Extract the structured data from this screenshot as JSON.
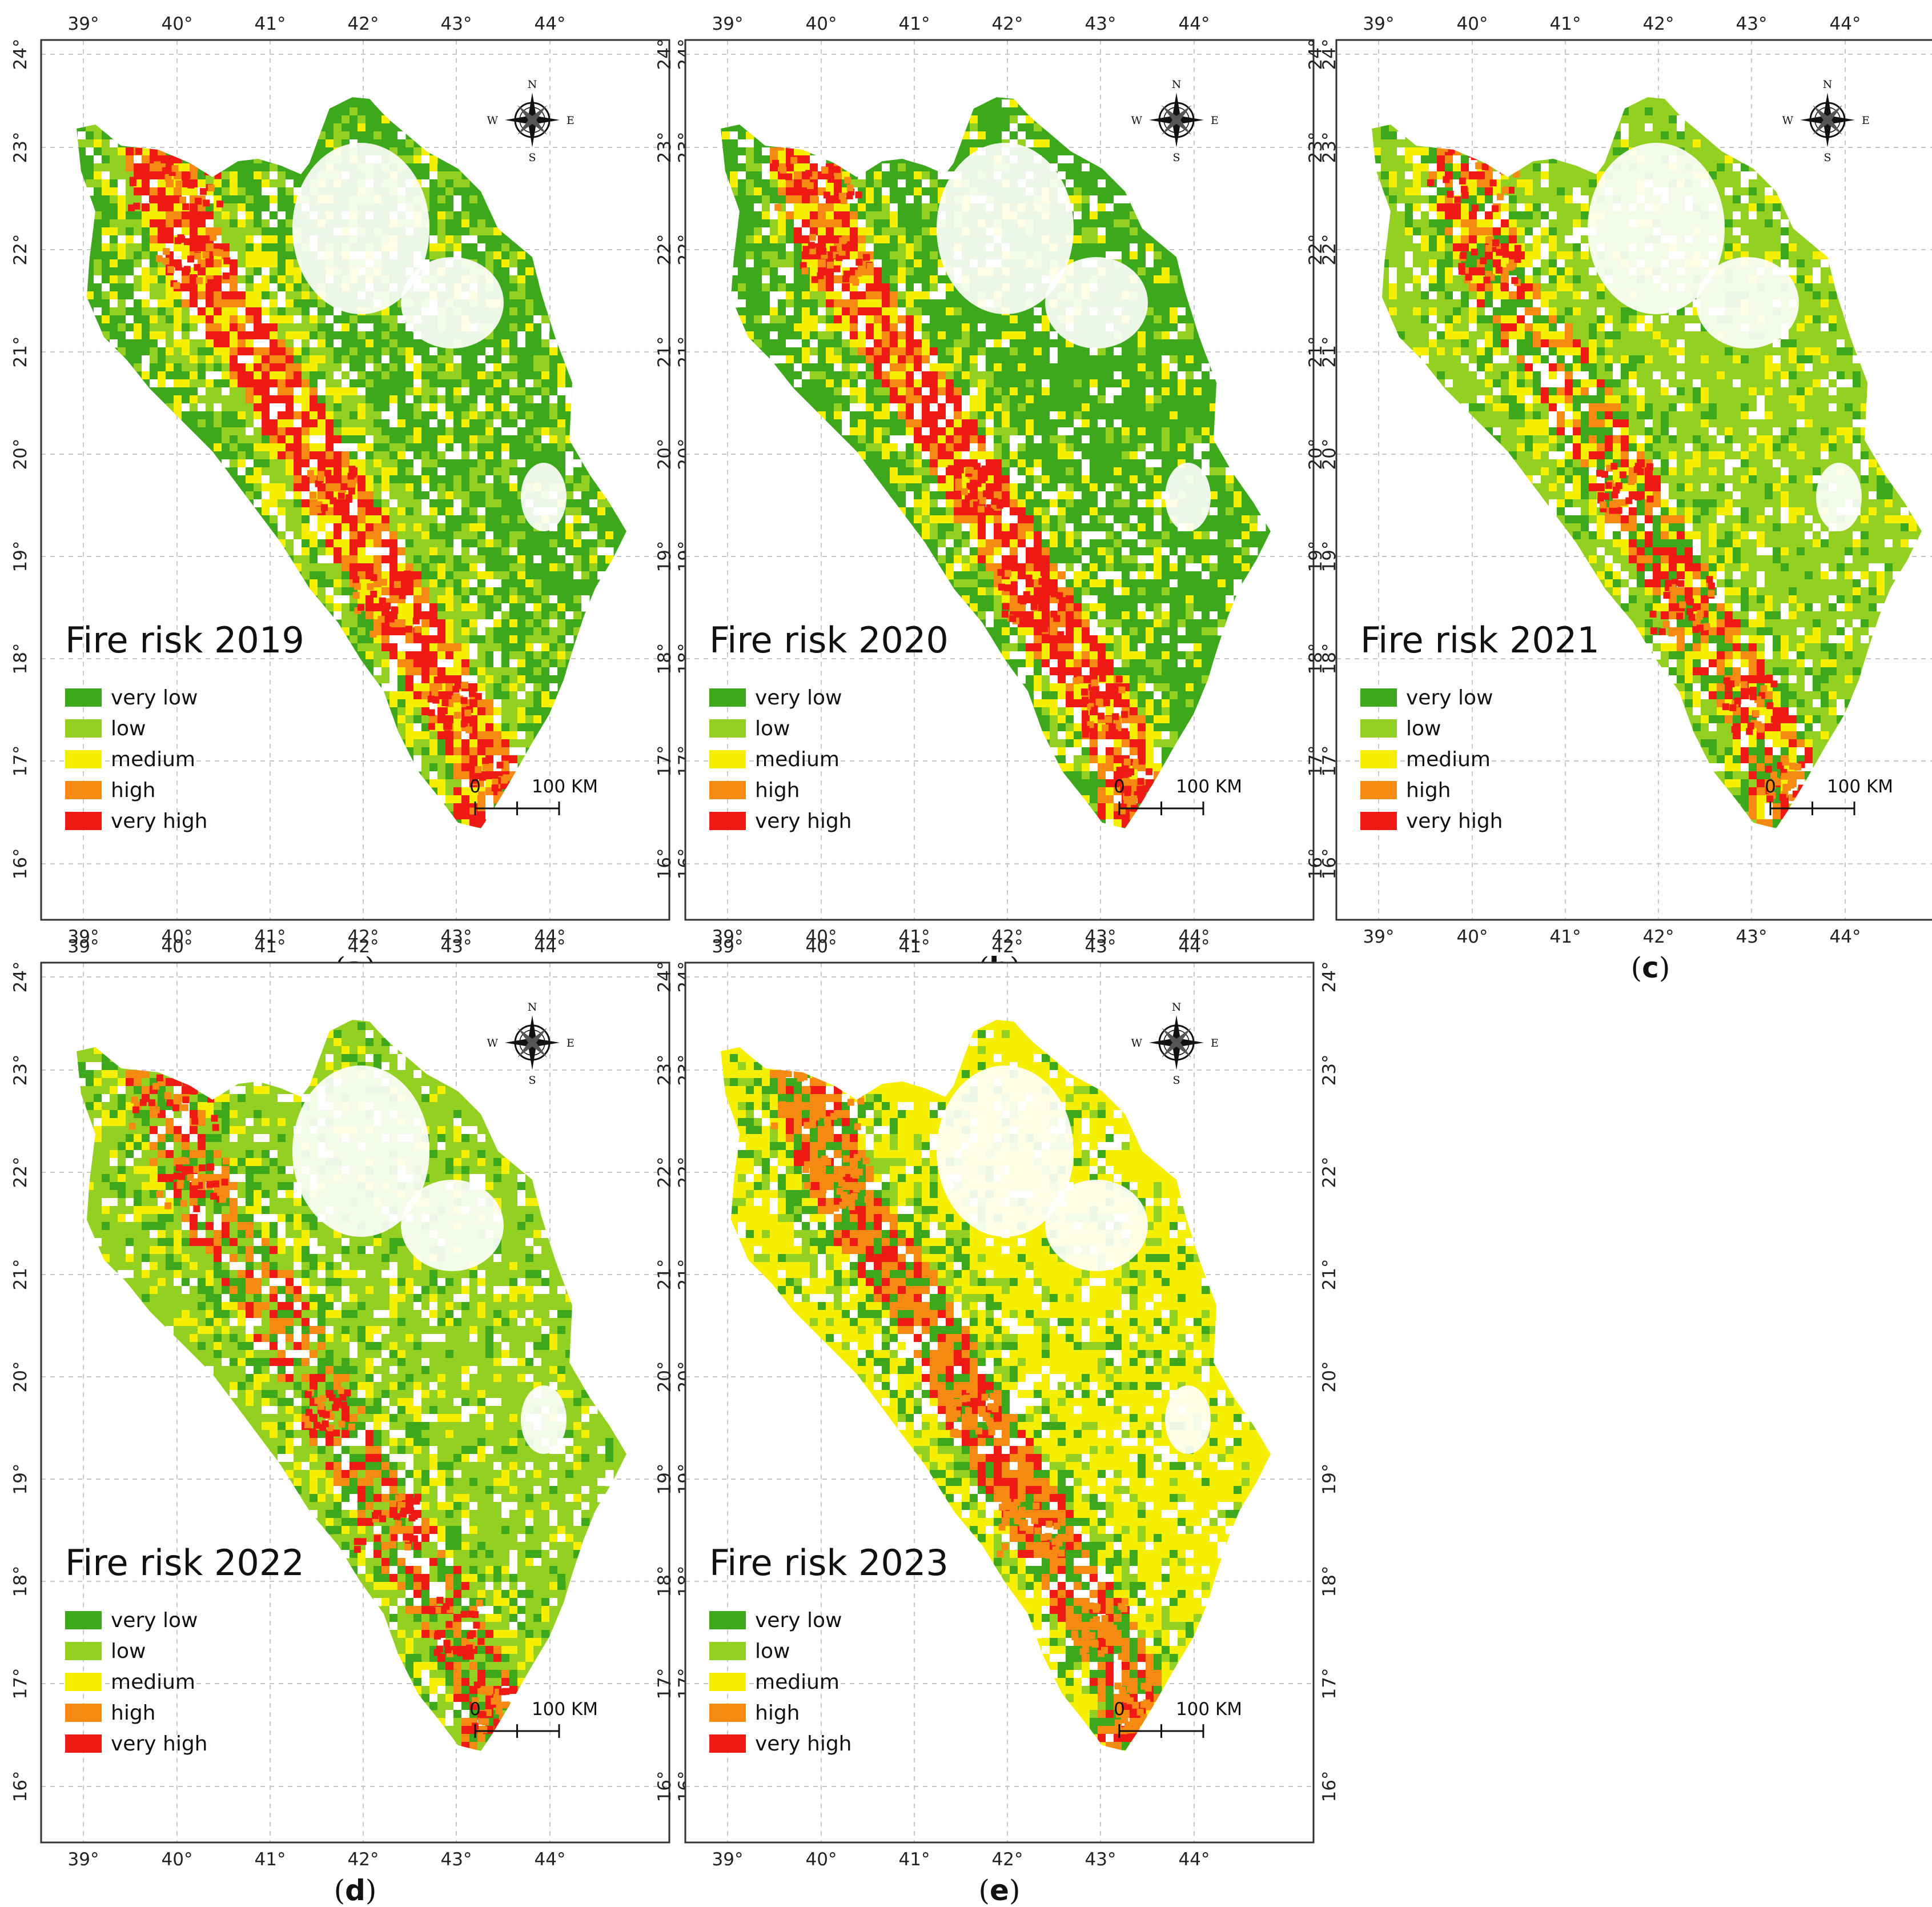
{
  "figure": {
    "colors": {
      "very_low": "#3ea81c",
      "low": "#93d021",
      "medium": "#f6f000",
      "high": "#f68a12",
      "very_high": "#ef1a14"
    },
    "compass": {
      "n": "N",
      "s": "S",
      "e": "E",
      "w": "W"
    },
    "lon_labels": [
      "39°",
      "40°",
      "41°",
      "42°",
      "43°",
      "44°"
    ],
    "lat_labels": [
      "16°",
      "17°",
      "18°",
      "19°",
      "20°",
      "21°",
      "22°",
      "23°",
      "24°"
    ],
    "legend": [
      {
        "key": "very_low",
        "label": "very low"
      },
      {
        "key": "low",
        "label": "low"
      },
      {
        "key": "medium",
        "label": "medium"
      },
      {
        "key": "high",
        "label": "high"
      },
      {
        "key": "very_high",
        "label": "very high"
      }
    ],
    "scale_bar": {
      "start": "0",
      "end": "100 KM"
    }
  },
  "panels": [
    {
      "id": "a",
      "title": "Fire risk 2019",
      "caption_open": "(",
      "caption_letter": "a",
      "caption_close": ")"
    },
    {
      "id": "b",
      "title": "Fire risk 2020",
      "caption_open": "(",
      "caption_letter": "b",
      "caption_close": ")"
    },
    {
      "id": "c",
      "title": "Fire risk 2021",
      "caption_open": "(",
      "caption_letter": "c",
      "caption_close": ")"
    },
    {
      "id": "d",
      "title": "Fire risk 2022",
      "caption_open": "(",
      "caption_letter": "d",
      "caption_close": ")"
    },
    {
      "id": "e",
      "title": "Fire risk 2023",
      "caption_open": "(",
      "caption_letter": "e",
      "caption_close": ")"
    }
  ]
}
